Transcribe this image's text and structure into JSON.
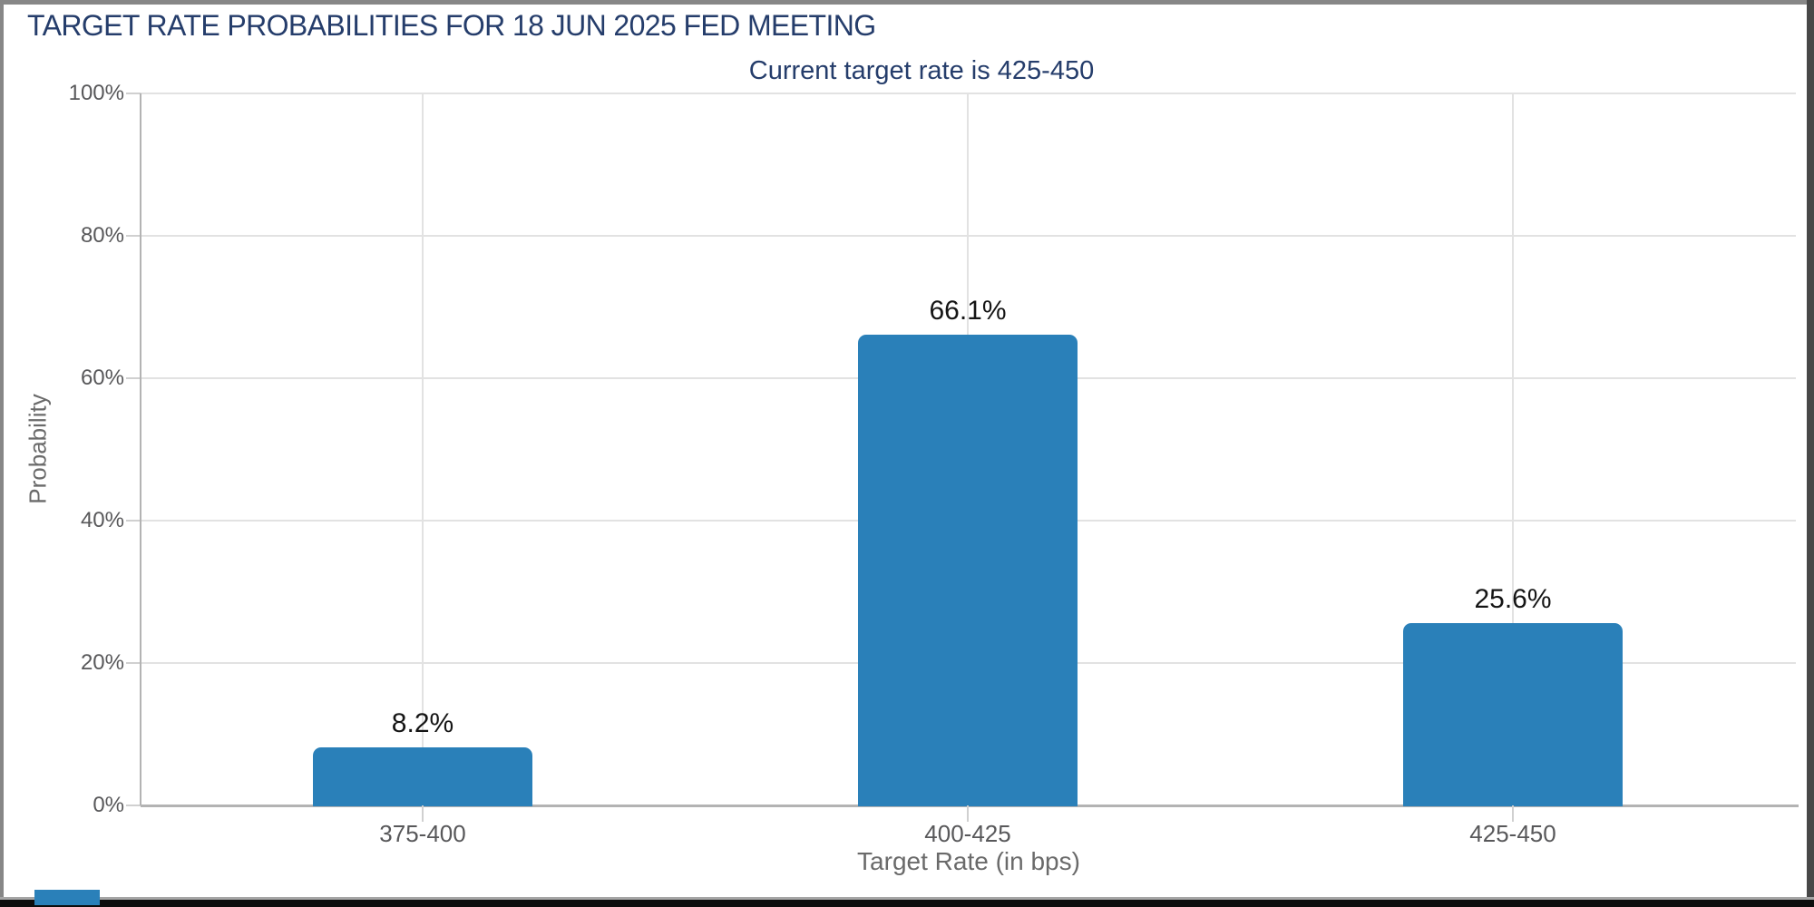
{
  "header": {
    "title": "TARGET RATE PROBABILITIES FOR 18 JUN 2025 FED MEETING",
    "subtitle": "Current target rate is 425-450"
  },
  "chart_data": {
    "type": "bar",
    "title": "TARGET RATE PROBABILITIES FOR 18 JUN 2025 FED MEETING",
    "subtitle": "Current target rate is 425-450",
    "categories": [
      "375-400",
      "400-425",
      "425-450"
    ],
    "values": [
      8.2,
      66.1,
      25.6
    ],
    "value_labels": [
      "8.2%",
      "66.1%",
      "25.6%"
    ],
    "xlabel": "Target Rate (in bps)",
    "ylabel": "Probability",
    "ylim": [
      0,
      100
    ],
    "yticks": [
      0,
      20,
      40,
      60,
      80,
      100
    ],
    "ytick_labels": [
      "0%",
      "20%",
      "40%",
      "60%",
      "80%",
      "100%"
    ],
    "grid": true,
    "legend": false,
    "colors": {
      "bar": "#2a80b9",
      "title_text": "#253d6b",
      "axis_tick_text": "#58585a",
      "axis_title_text": "#6a6a6a",
      "value_label_text": "#151515",
      "gridline": "#e2e2e2",
      "axis_line": "#b3b3b3"
    }
  },
  "artifacts": {
    "bottom_left_bar_color": "#2a80b9"
  }
}
